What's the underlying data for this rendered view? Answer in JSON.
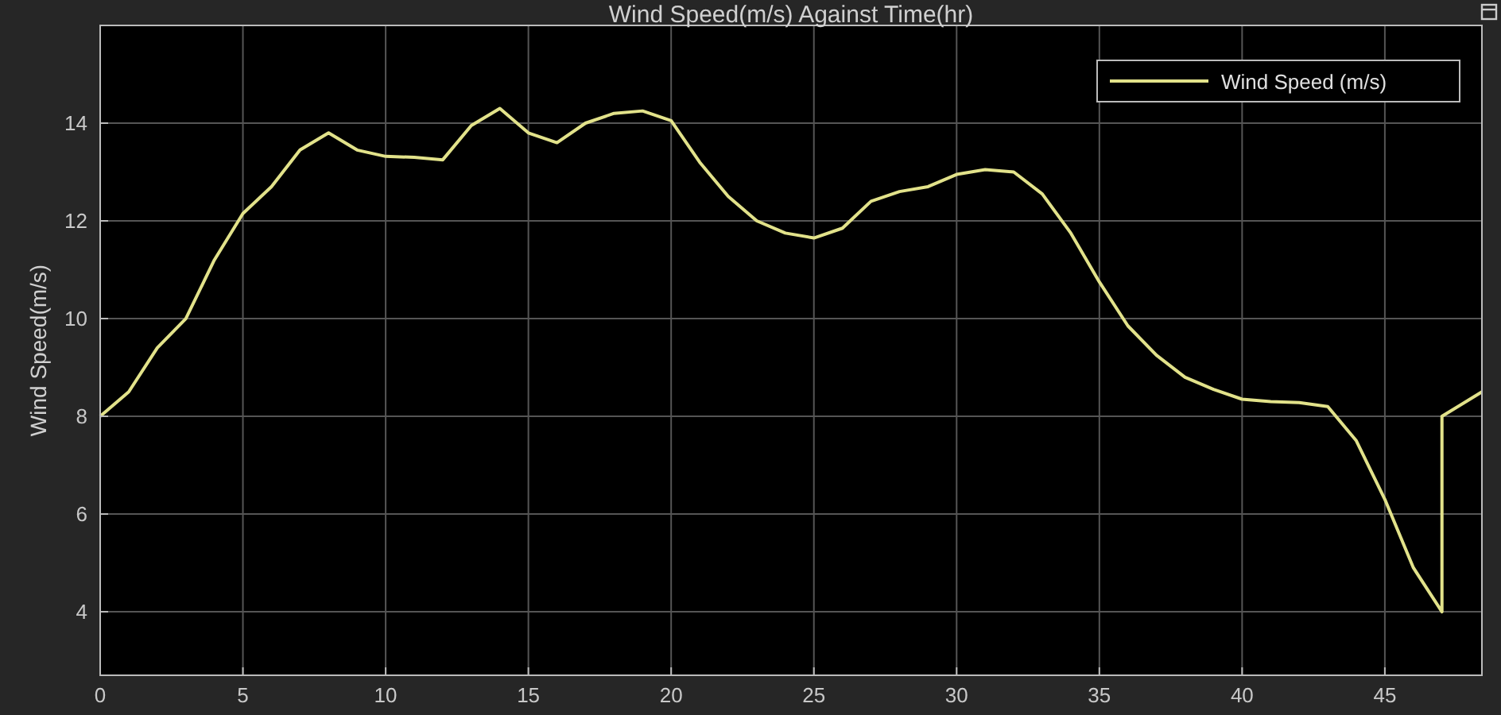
{
  "chart_data": {
    "type": "line",
    "title": "Wind Speed(m/s) Against Time(hr)",
    "ylabel": "Wind Speed(m/s)",
    "x": [
      0,
      1,
      2,
      3,
      4,
      5,
      6,
      7,
      8,
      9,
      10,
      11,
      12,
      13,
      14,
      15,
      16,
      17,
      18,
      19,
      20,
      21,
      22,
      23,
      24,
      25,
      26,
      27,
      28,
      29,
      30,
      31,
      32,
      33,
      34,
      35,
      36,
      37,
      38,
      39,
      40,
      41,
      42,
      43,
      44,
      45,
      46,
      47,
      47,
      48.4
    ],
    "series": [
      {
        "name": "Wind Speed (m/s)",
        "color": "#e2e28a",
        "values": [
          8.0,
          8.5,
          9.4,
          10.0,
          11.2,
          12.15,
          12.7,
          13.45,
          13.8,
          13.45,
          13.32,
          13.3,
          13.25,
          13.95,
          14.3,
          13.8,
          13.6,
          14.0,
          14.2,
          14.25,
          14.05,
          13.2,
          12.5,
          12.0,
          11.75,
          11.65,
          11.85,
          12.4,
          12.6,
          12.7,
          12.95,
          13.05,
          13.0,
          12.55,
          11.75,
          10.75,
          9.85,
          9.25,
          8.8,
          8.55,
          8.35,
          8.3,
          8.28,
          8.2,
          7.5,
          6.3,
          4.9,
          4.0,
          8.0,
          8.5
        ]
      }
    ],
    "xlim": [
      0,
      48.4
    ],
    "xticks": [
      0,
      5,
      10,
      15,
      20,
      25,
      30,
      35,
      40,
      45
    ],
    "ylim": [
      2.7,
      16
    ],
    "yticks": [
      4,
      6,
      8,
      10,
      12,
      14
    ],
    "grid": true,
    "legend": "top right",
    "marker": "none",
    "line_style": "solid"
  }
}
